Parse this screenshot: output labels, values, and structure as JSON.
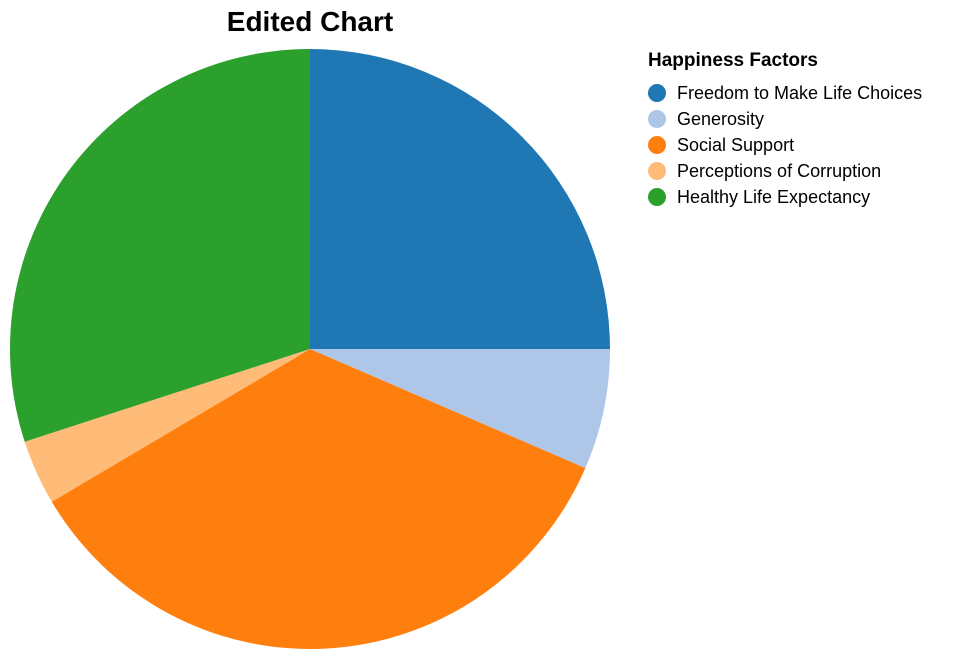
{
  "chart_data": {
    "type": "pie",
    "title": "Edited Chart",
    "legend_title": "Happiness Factors",
    "legend_placement": "right",
    "start_angle": "12 o'clock",
    "direction": "clockwise",
    "slices": [
      {
        "label": "Freedom to Make Life Choices",
        "value": 25.0,
        "color": "#1f77b4"
      },
      {
        "label": "Generosity",
        "value": 6.5,
        "color": "#aec7e8"
      },
      {
        "label": "Social Support",
        "value": 35.0,
        "color": "#ff7f0e"
      },
      {
        "label": "Perceptions of Corruption",
        "value": 3.5,
        "color": "#ffbb78"
      },
      {
        "label": "Healthy Life Expectancy",
        "value": 30.0,
        "color": "#2ca02c"
      }
    ]
  }
}
